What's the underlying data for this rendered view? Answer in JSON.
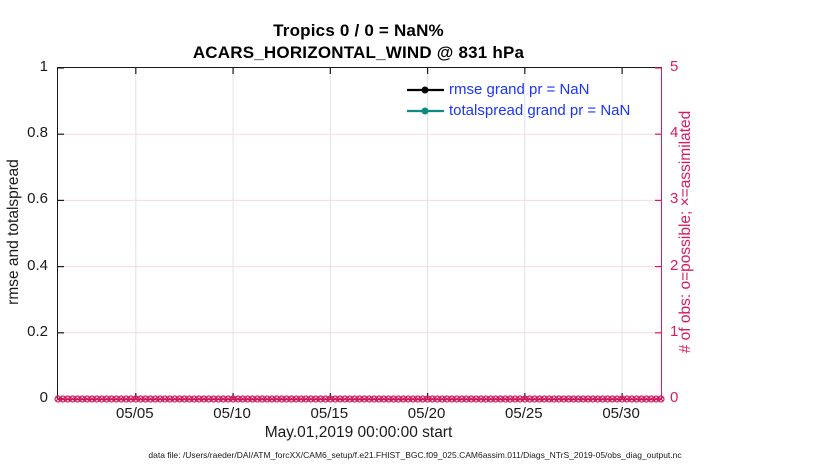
{
  "figure": {
    "title_line1": "Tropics 0 / 0 = NaN%",
    "title_line2": "ACARS_HORIZONTAL_WIND @ 831 hPa",
    "footer": "data file: /Users/raeder/DAI/ATM_forcXX/CAM6_setup/f.e21.FHIST_BGC.f09_025.CAM6assim.011/Diags_NTrS_2019-05/obs_diag_output.nc"
  },
  "colors": {
    "axis_left": "#1a1a1a",
    "axis_right": "#d81b60",
    "grid_vertical": "#e2e2e2",
    "grid_horizontal": "#f7d9e3",
    "legend_text": "#1a35ff",
    "rmse_series": "#000000",
    "totalspread_series": "#0e8b80",
    "obs_markers": "#d81b60"
  },
  "legend": {
    "items": [
      {
        "label": "rmse grand pr = NaN",
        "color": "#000000"
      },
      {
        "label": "totalspread grand pr = NaN",
        "color": "#0e8b80"
      }
    ]
  },
  "chart_data": {
    "type": "line",
    "title": "Tropics 0 / 0 = NaN%",
    "subtitle": "ACARS_HORIZONTAL_WIND @ 831 hPa",
    "xlabel": "May.01,2019 00:00:00 start",
    "ylabel_left": "rmse and totalspread",
    "ylabel_right": "# of obs: o=possible; ×=assimilated",
    "grid": true,
    "legend_position": "inside-top-center-right",
    "x_range_days": [
      0,
      31
    ],
    "x_ticks": [
      {
        "day": 4,
        "label": "05/05"
      },
      {
        "day": 9,
        "label": "05/10"
      },
      {
        "day": 14,
        "label": "05/15"
      },
      {
        "day": 19,
        "label": "05/20"
      },
      {
        "day": 24,
        "label": "05/25"
      },
      {
        "day": 29,
        "label": "05/30"
      }
    ],
    "ylim_left": [
      0,
      1
    ],
    "yticks_left": [
      {
        "v": 0,
        "label": "0"
      },
      {
        "v": 0.2,
        "label": "0.2"
      },
      {
        "v": 0.4,
        "label": "0.4"
      },
      {
        "v": 0.6,
        "label": "0.6"
      },
      {
        "v": 0.8,
        "label": "0.8"
      },
      {
        "v": 1,
        "label": "1"
      }
    ],
    "ylim_right": [
      0,
      5
    ],
    "yticks_right": [
      {
        "v": 0,
        "label": "0"
      },
      {
        "v": 1,
        "label": "1"
      },
      {
        "v": 2,
        "label": "2"
      },
      {
        "v": 3,
        "label": "3"
      },
      {
        "v": 4,
        "label": "4"
      },
      {
        "v": 5,
        "label": "5"
      }
    ],
    "series": [
      {
        "name": "rmse grand pr = NaN",
        "axis": "left",
        "color": "#000000",
        "values": "NaN",
        "line_visible": false
      },
      {
        "name": "totalspread grand pr = NaN",
        "axis": "left",
        "color": "#0e8b80",
        "values": "NaN",
        "line_visible": false
      },
      {
        "name": "# of possible obs (o)",
        "axis": "right",
        "marker": "o",
        "constant_value": 0,
        "points_per_day": 4,
        "days": 31
      },
      {
        "name": "# of assimilated obs (×)",
        "axis": "right",
        "marker": "x",
        "constant_value": 0,
        "points_per_day": 4,
        "days": 31
      }
    ]
  }
}
